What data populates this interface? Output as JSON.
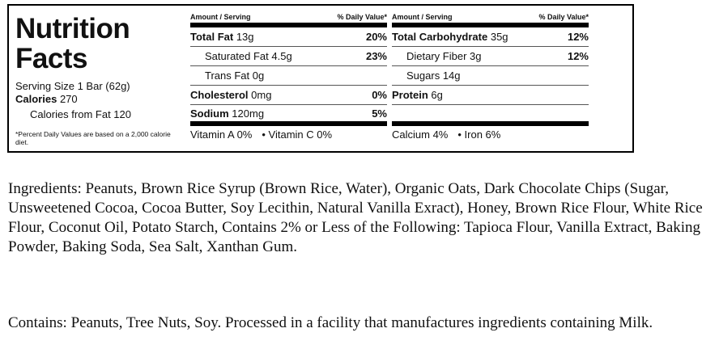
{
  "label": {
    "title_line1": "Nutrition",
    "title_line2": "Facts",
    "serving_size": "Serving Size 1 Bar (62g)",
    "calories_label": "Calories",
    "calories_value": "270",
    "calories_from_fat": "Calories from Fat 120",
    "footnote": "*Percent Daily Values are based on a 2,000 calorie diet.",
    "header_amount": "Amount / Serving",
    "header_dv": "% Daily Value*",
    "col1": [
      {
        "name": "Total Fat",
        "amount": "13g",
        "dv": "20%",
        "bold": true,
        "indent": false
      },
      {
        "name": "Saturated Fat",
        "amount": "4.5g",
        "dv": "23%",
        "bold": false,
        "indent": true
      },
      {
        "name": "Trans Fat",
        "amount": "0g",
        "dv": "",
        "bold": false,
        "indent": true
      },
      {
        "name": "Cholesterol",
        "amount": "0mg",
        "dv": "0%",
        "bold": true,
        "indent": false
      },
      {
        "name": "Sodium",
        "amount": "120mg",
        "dv": "5%",
        "bold": true,
        "indent": false
      }
    ],
    "col2": [
      {
        "name": "Total Carbohydrate",
        "amount": "35g",
        "dv": "12%",
        "bold": true,
        "indent": false
      },
      {
        "name": "Dietary Fiber",
        "amount": "3g",
        "dv": "12%",
        "bold": false,
        "indent": true
      },
      {
        "name": "Sugars",
        "amount": "14g",
        "dv": "",
        "bold": false,
        "indent": true
      },
      {
        "name": "Protein",
        "amount": "6g",
        "dv": "",
        "bold": true,
        "indent": false
      },
      {
        "name": "",
        "amount": "",
        "dv": "",
        "bold": false,
        "indent": false
      }
    ],
    "vitamins_left": [
      "Vitamin A 0%",
      "• Vitamin C 0%"
    ],
    "vitamins_right": [
      "Calcium 4%",
      "• Iron 6%"
    ]
  },
  "ingredients": "Ingredients: Peanuts, Brown Rice Syrup (Brown Rice, Water), Organic Oats, Dark Chocolate Chips (Sugar, Unsweetened Cocoa, Cocoa Butter, Soy Lecithin, Natural Vanilla Exract), Honey, Brown Rice Flour, White Rice Flour, Coconut Oil, Potato Starch, Contains 2% or Less of the Following: Tapioca Flour, Vanilla Extract, Baking Powder, Baking Soda, Sea Salt, Xanthan Gum.",
  "contains": "Contains: Peanuts, Tree Nuts, Soy. Processed in a facility that manufactures ingredients containing Milk."
}
